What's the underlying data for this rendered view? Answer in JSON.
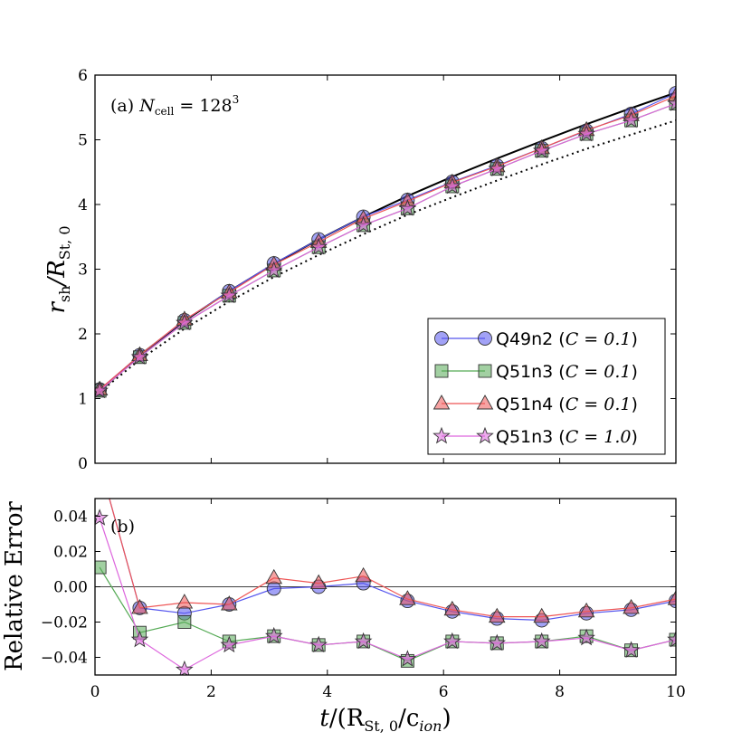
{
  "chart_data": [
    {
      "type": "line",
      "panel": "top",
      "annotation_prefix": "(a) ",
      "annotation_math": "N",
      "annotation_sub": "cell",
      "annotation_value": " = 128",
      "annotation_sup": "3",
      "ylabel_main": "r",
      "ylabel_sub": "sh",
      "ylabel_div": "/R",
      "ylabel_sub2": "St, 0",
      "xlim": [
        0,
        10
      ],
      "ylim": [
        0,
        6
      ],
      "yticks": [
        "0",
        "1",
        "2",
        "3",
        "4",
        "5",
        "6"
      ],
      "ytick_values": [
        0,
        1,
        2,
        3,
        4,
        5,
        6
      ],
      "xticks": [
        0,
        2,
        4,
        6,
        8,
        10
      ],
      "legend_position": "lower-right",
      "x": [
        0.08,
        0.77,
        1.54,
        2.31,
        3.08,
        3.85,
        4.62,
        5.38,
        6.15,
        6.92,
        7.69,
        8.46,
        9.23,
        10.0
      ],
      "reference_curves": [
        {
          "style": "solid",
          "x": [
            0.08,
            0.77,
            1.54,
            2.31,
            3.08,
            3.85,
            4.62,
            5.38,
            6.15,
            6.92,
            7.69,
            8.46,
            9.23,
            10.0
          ],
          "values": [
            1.11,
            1.67,
            2.2,
            2.66,
            3.08,
            3.46,
            3.81,
            4.13,
            4.43,
            4.71,
            4.98,
            5.24,
            5.49,
            5.73
          ]
        },
        {
          "style": "dotted",
          "x": [
            0.08,
            0.77,
            1.54,
            2.31,
            3.08,
            3.85,
            4.62,
            5.38,
            6.15,
            6.92,
            7.69,
            8.46,
            9.23,
            10.0
          ],
          "values": [
            1.1,
            1.6,
            2.08,
            2.5,
            2.88,
            3.22,
            3.54,
            3.84,
            4.11,
            4.37,
            4.62,
            4.86,
            5.08,
            5.3
          ]
        }
      ],
      "series": [
        {
          "name": "Q49n2",
          "param": "C = 0.1",
          "marker": "circle",
          "color": "#5555ee",
          "values": [
            1.14,
            1.67,
            2.21,
            2.66,
            3.09,
            3.46,
            3.81,
            4.07,
            4.35,
            4.6,
            4.87,
            5.14,
            5.4,
            5.72
          ]
        },
        {
          "name": "Q51n3",
          "param": "C = 0.1",
          "marker": "square",
          "color": "#55aa55",
          "values": [
            1.12,
            1.64,
            2.17,
            2.59,
            2.98,
            3.34,
            3.68,
            3.94,
            4.28,
            4.55,
            4.83,
            5.09,
            5.3,
            5.56
          ]
        },
        {
          "name": "Q51n4",
          "param": "C = 0.1",
          "marker": "triangle",
          "color": "#ee5555",
          "values": [
            1.14,
            1.67,
            2.22,
            2.64,
            3.07,
            3.42,
            3.78,
            4.05,
            4.34,
            4.59,
            4.87,
            5.15,
            5.38,
            5.68
          ]
        },
        {
          "name": "Q51n3",
          "param": "C = 1.0",
          "marker": "star",
          "color": "#dd66dd",
          "values": [
            1.12,
            1.64,
            2.17,
            2.59,
            2.98,
            3.34,
            3.68,
            3.94,
            4.28,
            4.55,
            4.83,
            5.09,
            5.3,
            5.56
          ]
        }
      ]
    },
    {
      "type": "line",
      "panel": "bottom",
      "annotation": "(b)",
      "ylabel": "Relative Error",
      "xlabel_main": "t",
      "xlabel_open": "/(R",
      "xlabel_sub": "St, 0",
      "xlabel_mid": "/c",
      "xlabel_sub2": "ion",
      "xlabel_close": ")",
      "xlim": [
        0,
        10
      ],
      "ylim": [
        -0.05,
        0.05
      ],
      "yticks": [
        "−0.04",
        "−0.02",
        "0.00",
        "0.02",
        "0.04"
      ],
      "ytick_values": [
        -0.04,
        -0.02,
        0.0,
        0.02,
        0.04
      ],
      "xticks": [
        "0",
        "2",
        "4",
        "6",
        "8",
        "10"
      ],
      "xtick_values": [
        0,
        2,
        4,
        6,
        8,
        10
      ],
      "zero_line": true,
      "x": [
        0.08,
        0.77,
        1.54,
        2.31,
        3.08,
        3.85,
        4.62,
        5.38,
        6.15,
        6.92,
        7.69,
        8.46,
        9.23,
        10.0
      ],
      "series": [
        {
          "name": "Q49n2",
          "marker": "circle",
          "color": "#5555ee",
          "values": [
            0.07,
            -0.012,
            -0.015,
            -0.01,
            -0.001,
            0.0,
            0.002,
            -0.008,
            -0.014,
            -0.018,
            -0.019,
            -0.015,
            -0.013,
            -0.008
          ]
        },
        {
          "name": "Q51n3",
          "marker": "square",
          "color": "#55aa55",
          "values": [
            0.011,
            -0.026,
            -0.02,
            -0.031,
            -0.028,
            -0.033,
            -0.031,
            -0.042,
            -0.031,
            -0.032,
            -0.031,
            -0.028,
            -0.036,
            -0.03
          ]
        },
        {
          "name": "Q51n4",
          "marker": "triangle",
          "color": "#ee5555",
          "values": [
            0.07,
            -0.012,
            -0.009,
            -0.01,
            0.005,
            0.002,
            0.006,
            -0.007,
            -0.013,
            -0.017,
            -0.017,
            -0.014,
            -0.012,
            -0.007
          ]
        },
        {
          "name": "Q51n3",
          "marker": "star",
          "color": "#dd66dd",
          "values": [
            0.039,
            -0.03,
            -0.047,
            -0.033,
            -0.028,
            -0.033,
            -0.031,
            -0.041,
            -0.031,
            -0.032,
            -0.031,
            -0.029,
            -0.036,
            -0.03
          ]
        }
      ]
    }
  ]
}
